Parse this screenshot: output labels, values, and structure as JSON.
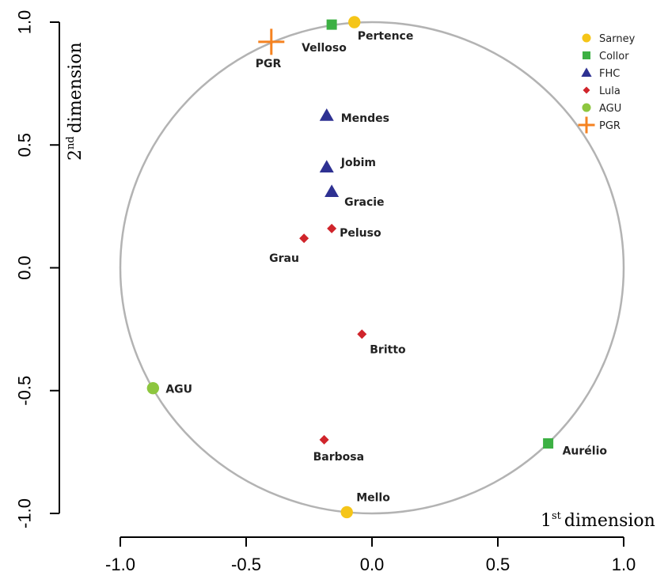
{
  "chart_data": {
    "type": "scatter",
    "xlabel": {
      "ordinal": "1",
      "suffix": "st",
      "text": "dimension"
    },
    "ylabel": {
      "ordinal": "2",
      "suffix": "nd",
      "text": "dimension"
    },
    "xlim": [
      -1.0,
      1.0
    ],
    "ylim": [
      -1.0,
      1.0
    ],
    "xticks": [
      "-1.0",
      "-0.5",
      "0.0",
      "0.5",
      "1.0"
    ],
    "yticks": [
      "-1.0",
      "-0.5",
      "0.0",
      "0.5",
      "1.0"
    ],
    "unit_circle": true,
    "grid": false,
    "legend_position": "top-right",
    "series": [
      {
        "name": "Sarney",
        "color": "#F5C518",
        "marker": "circle",
        "points": [
          {
            "label": "Pertence",
            "x": -0.07,
            "y": 1.0
          },
          {
            "label": "Mello",
            "x": -0.1,
            "y": -0.995
          }
        ]
      },
      {
        "name": "Collor",
        "color": "#3CB043",
        "marker": "square",
        "points": [
          {
            "label": "Velloso",
            "x": -0.16,
            "y": 0.99
          },
          {
            "label": "Aurélio",
            "x": 0.7,
            "y": -0.715
          }
        ]
      },
      {
        "name": "FHC",
        "color": "#2E3192",
        "marker": "triangle",
        "points": [
          {
            "label": "Mendes",
            "x": -0.18,
            "y": 0.62
          },
          {
            "label": "Jobim",
            "x": -0.18,
            "y": 0.41
          },
          {
            "label": "Gracie",
            "x": -0.16,
            "y": 0.31
          }
        ]
      },
      {
        "name": "Lula",
        "color": "#D0242B",
        "marker": "diamond",
        "points": [
          {
            "label": "Peluso",
            "x": -0.16,
            "y": 0.16
          },
          {
            "label": "Grau",
            "x": -0.27,
            "y": 0.12
          },
          {
            "label": "Britto",
            "x": -0.04,
            "y": -0.27
          },
          {
            "label": "Barbosa",
            "x": -0.19,
            "y": -0.7
          }
        ]
      },
      {
        "name": "AGU",
        "color": "#8DC63F",
        "marker": "circle",
        "points": [
          {
            "label": "AGU",
            "x": -0.87,
            "y": -0.49
          }
        ]
      },
      {
        "name": "PGR",
        "color": "#F58220",
        "marker": "plus",
        "points": [
          {
            "label": "PGR",
            "x": -0.4,
            "y": 0.92
          }
        ]
      }
    ]
  }
}
